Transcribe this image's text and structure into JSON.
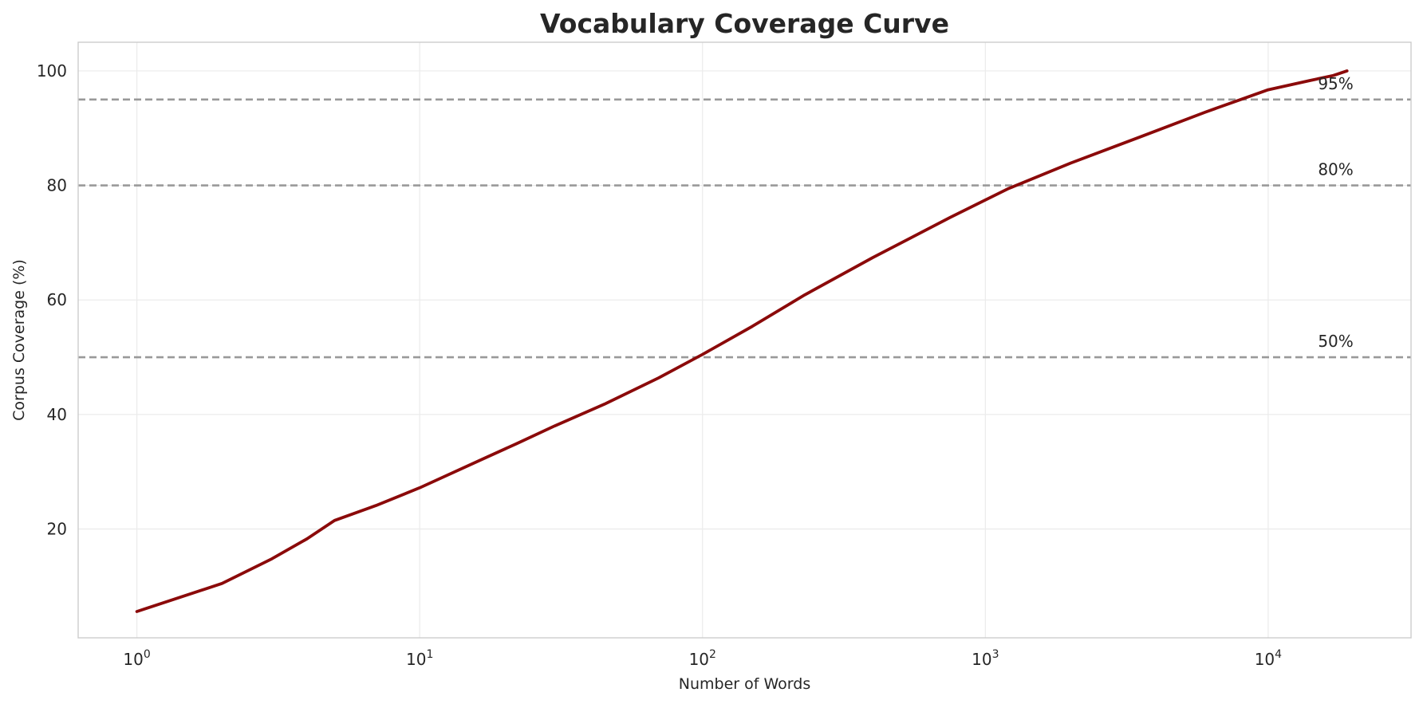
{
  "chart_data": {
    "type": "line",
    "title": "Vocabulary Coverage Curve",
    "xlabel": "Number of Words",
    "ylabel": "Corpus Coverage (%)",
    "xscale": "log",
    "xlim": [
      0.62,
      32000
    ],
    "ylim": [
      1,
      105
    ],
    "grid": true,
    "legend": "none",
    "x_ticks": [
      {
        "value": 1,
        "base": "10",
        "exp": "0"
      },
      {
        "value": 10,
        "base": "10",
        "exp": "1"
      },
      {
        "value": 100,
        "base": "10",
        "exp": "2"
      },
      {
        "value": 1000,
        "base": "10",
        "exp": "3"
      },
      {
        "value": 10000,
        "base": "10",
        "exp": "4"
      }
    ],
    "y_ticks": [
      {
        "value": 20,
        "label": "20"
      },
      {
        "value": 40,
        "label": "40"
      },
      {
        "value": 60,
        "label": "60"
      },
      {
        "value": 80,
        "label": "80"
      },
      {
        "value": 100,
        "label": "100"
      }
    ],
    "series": [
      {
        "color": "#8b0a0a",
        "x": [
          1,
          2,
          3,
          4,
          5,
          7,
          10,
          17,
          22,
          30,
          45,
          70,
          100,
          150,
          230,
          400,
          750,
          1200,
          2000,
          3500,
          6000,
          10000,
          14000,
          17000,
          19000
        ],
        "y": [
          5.6,
          10.5,
          14.8,
          18.3,
          21.5,
          24.1,
          27.2,
          32.4,
          34.9,
          38,
          41.8,
          46.4,
          50.5,
          55.4,
          60.9,
          67.4,
          74.4,
          79.4,
          83.9,
          88.4,
          92.8,
          96.7,
          98.3,
          99.2,
          100
        ]
      }
    ],
    "reference_lines": [
      {
        "value": 95,
        "label": "95%",
        "color": "#999999"
      },
      {
        "value": 80,
        "label": "80%",
        "color": "#999999"
      },
      {
        "value": 50,
        "label": "50%",
        "color": "#999999"
      }
    ],
    "reference_label_x": 15000
  }
}
